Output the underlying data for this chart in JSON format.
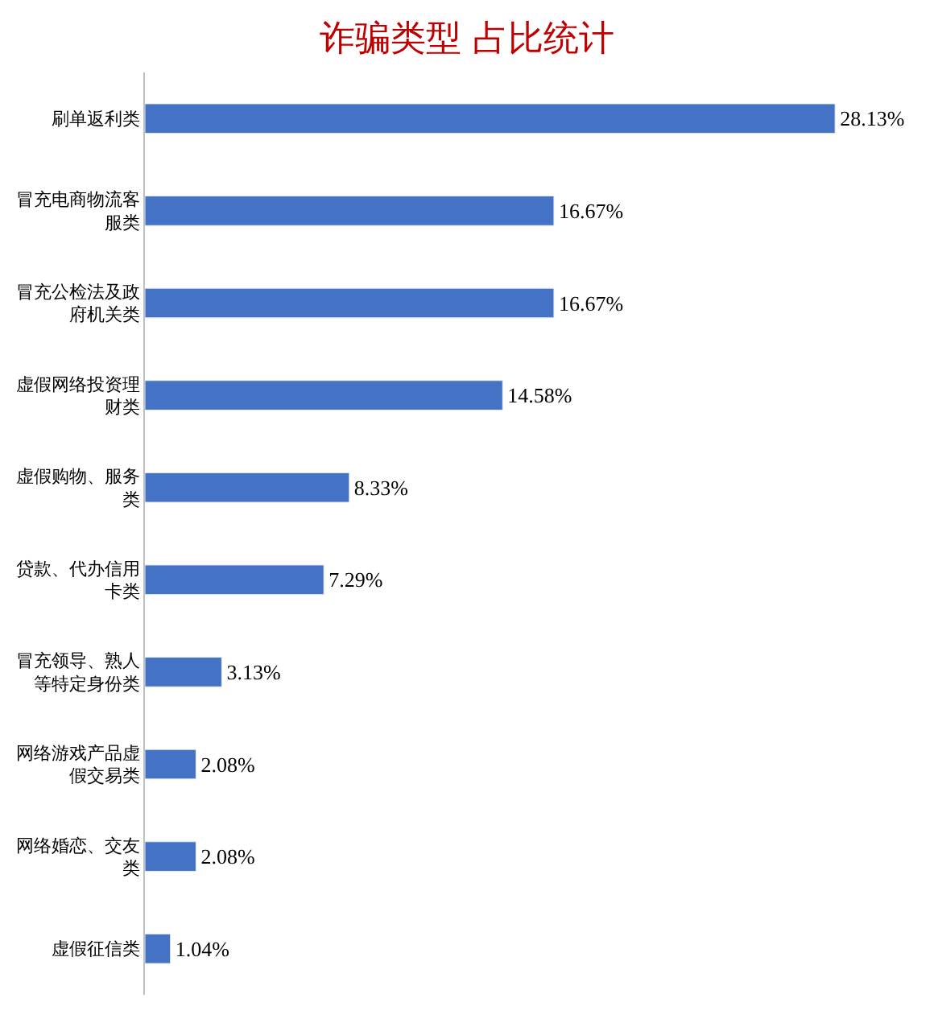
{
  "chart_data": {
    "type": "bar",
    "orientation": "horizontal",
    "title": "诈骗类型 占比统计",
    "categories": [
      "刷单返利类",
      "冒充电商物流客服类",
      "冒充公检法及政府机关类",
      "虚假网络投资理财类",
      "虚假购物、服务类",
      "贷款、代办信用卡类",
      "冒充领导、熟人等特定身份类",
      "网络游戏产品虚假交易类",
      "网络婚恋、交友类",
      "虚假征信类"
    ],
    "values": [
      28.13,
      16.67,
      16.67,
      14.58,
      8.33,
      7.29,
      3.13,
      2.08,
      2.08,
      1.04
    ],
    "value_labels": [
      "28.13%",
      "16.67%",
      "16.67%",
      "14.58%",
      "8.33%",
      "7.29%",
      "3.13%",
      "2.08%",
      "2.08%",
      "1.04%"
    ],
    "color": "#4472c4"
  }
}
